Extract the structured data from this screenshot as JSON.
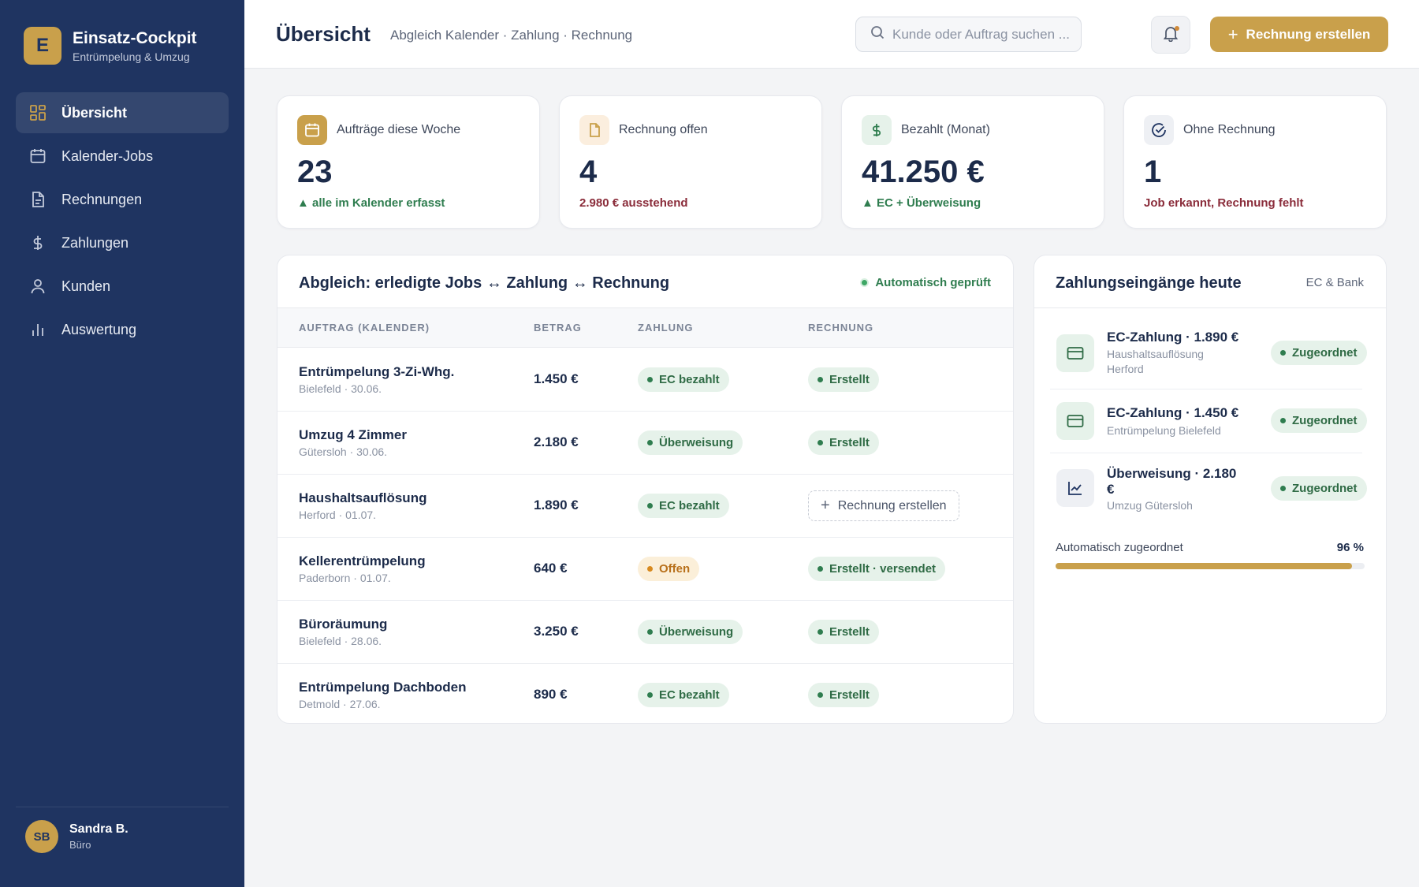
{
  "brand": {
    "logo_letter": "E",
    "title": "Einsatz-Cockpit",
    "subtitle": "Entrümpelung & Umzug"
  },
  "sidebar": {
    "items": [
      {
        "label": "Übersicht",
        "icon": "grid-icon",
        "active": true
      },
      {
        "label": "Kalender-Jobs",
        "icon": "calendar-icon",
        "active": false
      },
      {
        "label": "Rechnungen",
        "icon": "document-icon",
        "active": false
      },
      {
        "label": "Zahlungen",
        "icon": "dollar-icon",
        "active": false
      },
      {
        "label": "Kunden",
        "icon": "user-icon",
        "active": false
      },
      {
        "label": "Auswertung",
        "icon": "bar-chart-icon",
        "active": false
      }
    ]
  },
  "user": {
    "initials": "SB",
    "name": "Sandra B.",
    "role": "Büro"
  },
  "header": {
    "title": "Übersicht",
    "subtitle": "Abgleich Kalender · Zahlung · Rechnung",
    "search_placeholder": "Kunde oder Auftrag suchen ...",
    "create_label": "Rechnung erstellen"
  },
  "kpis": [
    {
      "label": "Aufträge diese Woche",
      "value": "23",
      "note": "▲ alle im Kalender erfasst",
      "tone": "green",
      "icon": "calendar-icon"
    },
    {
      "label": "Rechnung offen",
      "value": "4",
      "note": "2.980 € ausstehend",
      "tone": "red",
      "icon": "document-icon"
    },
    {
      "label": "Bezahlt (Monat)",
      "value": "41.250 €",
      "note": "▲ EC + Überweisung",
      "tone": "green",
      "icon": "dollar-icon"
    },
    {
      "label": "Ohne Rechnung",
      "value": "1",
      "note": "Job erkannt, Rechnung fehlt",
      "tone": "red",
      "icon": "check-circle-icon"
    }
  ],
  "reconcile": {
    "title": "Abgleich: erledigte Jobs ↔ Zahlung ↔ Rechnung",
    "status": "Automatisch geprüft",
    "columns": [
      "AUFTRAG (KALENDER)",
      "BETRAG",
      "ZAHLUNG",
      "RECHNUNG"
    ],
    "rows": [
      {
        "title": "Entrümpelung 3-Zi-Whg.",
        "sub": "Bielefeld · 30.06.",
        "amount": "1.450 €",
        "payment": "EC bezahlt",
        "payment_tone": "green",
        "invoice": "Erstellt",
        "invoice_missing": false
      },
      {
        "title": "Umzug 4 Zimmer",
        "sub": "Gütersloh · 30.06.",
        "amount": "2.180 €",
        "payment": "Überweisung",
        "payment_tone": "green",
        "invoice": "Erstellt",
        "invoice_missing": false
      },
      {
        "title": "Haushaltsauflösung",
        "sub": "Herford · 01.07.",
        "amount": "1.890 €",
        "payment": "EC bezahlt",
        "payment_tone": "green",
        "invoice": "Rechnung erstellen",
        "invoice_missing": true
      },
      {
        "title": "Kellerentrümpelung",
        "sub": "Paderborn · 01.07.",
        "amount": "640 €",
        "payment": "Offen",
        "payment_tone": "orange",
        "invoice": "Erstellt · versendet",
        "invoice_missing": false
      },
      {
        "title": "Büroräumung",
        "sub": "Bielefeld · 28.06.",
        "amount": "3.250 €",
        "payment": "Überweisung",
        "payment_tone": "green",
        "invoice": "Erstellt",
        "invoice_missing": false
      },
      {
        "title": "Entrümpelung Dachboden",
        "sub": "Detmold · 27.06.",
        "amount": "890 €",
        "payment": "EC bezahlt",
        "payment_tone": "green",
        "invoice": "Erstellt",
        "invoice_missing": false
      }
    ]
  },
  "payments": {
    "title": "Zahlungseingänge heute",
    "meta": "EC & Bank",
    "items": [
      {
        "title": "EC-Zahlung · 1.890 €",
        "sub": "Haushaltsauflösung Herford",
        "status": "Zugeordnet",
        "icon": "card-icon"
      },
      {
        "title": "EC-Zahlung · 1.450 €",
        "sub": "Entrümpelung Bielefeld",
        "status": "Zugeordnet",
        "icon": "card-icon"
      },
      {
        "title": "Überweisung · 2.180 €",
        "sub": "Umzug Gütersloh",
        "status": "Zugeordnet",
        "icon": "trend-chart-icon"
      }
    ],
    "progress_label": "Automatisch zugeordnet",
    "progress_value": "96 %",
    "progress_percent": 96
  },
  "colors": {
    "sidebar": "#1f3461",
    "accent": "#c9a04b",
    "success": "#2f7d4f",
    "warning": "#d88a1f",
    "danger": "#8a2c3a"
  }
}
